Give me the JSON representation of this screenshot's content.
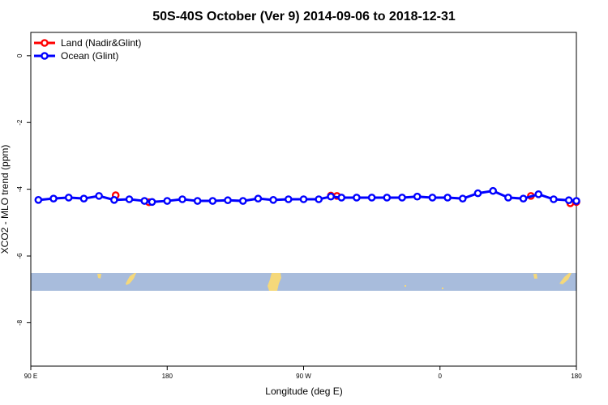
{
  "chart_data": {
    "type": "line",
    "title": "50S-40S October (Ver 9)   2014-09-06 to 2018-12-31",
    "xlabel": "Longitude (deg E)",
    "ylabel": "XCO2 - MLO trend (ppm)",
    "xlim": [
      90,
      450
    ],
    "ylim": [
      -9.3,
      0.7
    ],
    "x_ticks": [
      {
        "value": 90,
        "label": "90 E"
      },
      {
        "value": 180,
        "label": "180"
      },
      {
        "value": 270,
        "label": "90 W"
      },
      {
        "value": 360,
        "label": "0"
      },
      {
        "value": 450,
        "label": "180"
      }
    ],
    "y_ticks": [
      {
        "value": 0,
        "label": "0"
      },
      {
        "value": -2,
        "label": "-2"
      },
      {
        "value": -4,
        "label": "-4"
      },
      {
        "value": -6,
        "label": "-6"
      },
      {
        "value": -8,
        "label": "-8"
      }
    ],
    "legend_position": "top-left",
    "grid": false,
    "series": [
      {
        "name": "Land (Nadir&Glint)",
        "color": "#ff0000",
        "x": [
          146,
          168,
          288,
          292,
          420,
          446,
          450
        ],
        "y": [
          -4.18,
          -4.39,
          -4.19,
          -4.2,
          -4.2,
          -4.42,
          -4.38
        ]
      },
      {
        "name": "Ocean (Glint)",
        "color": "#0000ff",
        "x": [
          95,
          105,
          115,
          125,
          135,
          145,
          155,
          165,
          170,
          180,
          190,
          200,
          210,
          220,
          230,
          240,
          250,
          260,
          270,
          280,
          288,
          295,
          305,
          315,
          325,
          335,
          345,
          355,
          365,
          375,
          385,
          395,
          405,
          415,
          425,
          435,
          445,
          450
        ],
        "y": [
          -4.32,
          -4.28,
          -4.25,
          -4.28,
          -4.2,
          -4.32,
          -4.3,
          -4.35,
          -4.38,
          -4.35,
          -4.3,
          -4.35,
          -4.35,
          -4.33,
          -4.35,
          -4.28,
          -4.32,
          -4.3,
          -4.3,
          -4.3,
          -4.22,
          -4.25,
          -4.25,
          -4.25,
          -4.25,
          -4.25,
          -4.22,
          -4.25,
          -4.25,
          -4.28,
          -4.12,
          -4.05,
          -4.25,
          -4.28,
          -4.15,
          -4.3,
          -4.33,
          -4.35
        ]
      }
    ],
    "map_band": {
      "ocean_color": "#a8bcdc",
      "land_color": "#f5d87a"
    }
  }
}
